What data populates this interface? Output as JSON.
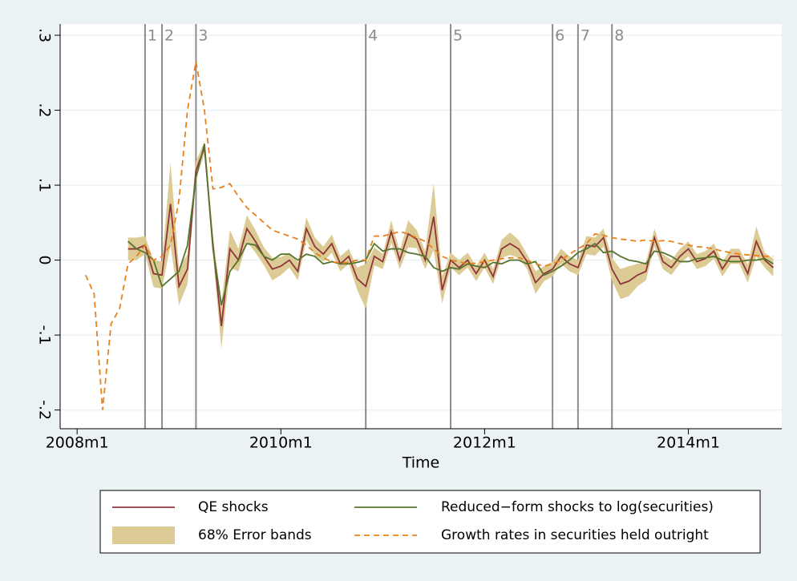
{
  "chart_data": {
    "type": "line",
    "x_label": "Time",
    "x": [
      "2008m2",
      "2008m3",
      "2008m4",
      "2008m5",
      "2008m6",
      "2008m7",
      "2008m8",
      "2008m9",
      "2008m10",
      "2008m11",
      "2008m12",
      "2009m1",
      "2009m2",
      "2009m3",
      "2009m4",
      "2009m5",
      "2009m6",
      "2009m7",
      "2009m8",
      "2009m9",
      "2009m10",
      "2009m11",
      "2009m12",
      "2010m1",
      "2010m2",
      "2010m3",
      "2010m4",
      "2010m5",
      "2010m6",
      "2010m7",
      "2010m8",
      "2010m9",
      "2010m10",
      "2010m11",
      "2010m12",
      "2011m1",
      "2011m2",
      "2011m3",
      "2011m4",
      "2011m5",
      "2011m6",
      "2011m7",
      "2011m8",
      "2011m9",
      "2011m10",
      "2011m11",
      "2011m12",
      "2012m1",
      "2012m2",
      "2012m3",
      "2012m4",
      "2012m5",
      "2012m6",
      "2012m7",
      "2012m8",
      "2012m9",
      "2012m10",
      "2012m11",
      "2012m12",
      "2013m1",
      "2013m2",
      "2013m3",
      "2013m4",
      "2013m5",
      "2013m6",
      "2013m7",
      "2013m8",
      "2013m9",
      "2013m10",
      "2013m11",
      "2013m12",
      "2014m1",
      "2014m2",
      "2014m3",
      "2014m4",
      "2014m5",
      "2014m6",
      "2014m7",
      "2014m8",
      "2014m9",
      "2014m10",
      "2014m11"
    ],
    "series": [
      {
        "name": "QE shocks",
        "type": "line",
        "color": "#90353b",
        "values": [
          null,
          null,
          null,
          null,
          null,
          0.015,
          0.015,
          0.02,
          -0.018,
          -0.02,
          0.075,
          -0.035,
          -0.012,
          0.12,
          0.15,
          0.02,
          -0.088,
          0.015,
          0.0,
          0.042,
          0.025,
          0.005,
          -0.012,
          -0.008,
          0.0,
          -0.015,
          0.042,
          0.018,
          0.008,
          0.022,
          -0.005,
          0.005,
          -0.025,
          -0.035,
          0.005,
          -0.002,
          0.038,
          0.0,
          0.035,
          0.028,
          0.0,
          0.058,
          -0.04,
          0.0,
          -0.01,
          0.0,
          -0.018,
          0.0,
          -0.022,
          0.015,
          0.022,
          0.015,
          -0.002,
          -0.03,
          -0.018,
          -0.012,
          0.005,
          -0.005,
          -0.01,
          0.02,
          0.018,
          0.03,
          -0.012,
          -0.032,
          -0.028,
          -0.02,
          -0.015,
          0.03,
          -0.002,
          -0.01,
          0.005,
          0.015,
          -0.002,
          0.002,
          0.012,
          -0.012,
          0.005,
          0.005,
          -0.018,
          0.025,
          0.0,
          -0.01
        ]
      },
      {
        "name": "Reduced−form shocks to log(securities)",
        "type": "line",
        "color": "#55752f",
        "values": [
          null,
          null,
          null,
          null,
          null,
          0.025,
          0.015,
          0.01,
          0.0,
          -0.035,
          -0.025,
          -0.015,
          0.02,
          0.11,
          0.155,
          0.015,
          -0.06,
          -0.015,
          0.0,
          0.022,
          0.02,
          0.005,
          0.0,
          0.008,
          0.008,
          0.0,
          0.008,
          0.005,
          -0.005,
          -0.002,
          -0.005,
          -0.005,
          -0.003,
          0.0,
          0.022,
          0.012,
          0.015,
          0.015,
          0.01,
          0.008,
          0.005,
          -0.01,
          -0.015,
          -0.01,
          -0.012,
          -0.005,
          -0.008,
          -0.01,
          -0.003,
          -0.005,
          0.0,
          0.0,
          -0.005,
          -0.002,
          -0.02,
          -0.015,
          -0.008,
          0.0,
          0.01,
          0.015,
          0.022,
          0.01,
          0.012,
          0.005,
          0.0,
          -0.002,
          -0.005,
          0.012,
          0.01,
          0.005,
          -0.002,
          -0.002,
          0.002,
          0.003,
          0.005,
          0.0,
          -0.002,
          -0.002,
          0.0,
          0.0,
          0.002,
          -0.005
        ]
      },
      {
        "name": "68% Error bands",
        "type": "band",
        "color": "#dccb95",
        "lower": [
          null,
          null,
          null,
          null,
          null,
          0.0,
          0.0,
          0.008,
          -0.036,
          -0.038,
          0.02,
          -0.06,
          -0.032,
          0.108,
          0.142,
          0.008,
          -0.118,
          -0.01,
          -0.015,
          0.024,
          0.01,
          -0.007,
          -0.027,
          -0.02,
          -0.01,
          -0.027,
          0.027,
          0.006,
          -0.002,
          0.01,
          -0.015,
          -0.005,
          -0.04,
          -0.065,
          -0.007,
          -0.012,
          0.023,
          -0.012,
          0.017,
          0.016,
          -0.012,
          0.013,
          -0.058,
          -0.01,
          -0.02,
          -0.01,
          -0.028,
          -0.01,
          -0.032,
          0.003,
          0.007,
          0.003,
          -0.012,
          -0.045,
          -0.028,
          -0.022,
          -0.005,
          -0.015,
          -0.02,
          0.008,
          0.006,
          0.018,
          -0.027,
          -0.052,
          -0.048,
          -0.035,
          -0.027,
          0.018,
          -0.012,
          -0.02,
          -0.005,
          0.005,
          -0.012,
          -0.008,
          0.002,
          -0.022,
          -0.005,
          -0.005,
          -0.03,
          0.005,
          -0.01,
          -0.022
        ],
        "upper": [
          null,
          null,
          null,
          null,
          null,
          0.03,
          0.03,
          0.032,
          0.0,
          -0.002,
          0.13,
          -0.01,
          0.008,
          0.132,
          0.158,
          0.032,
          -0.058,
          0.04,
          0.015,
          0.06,
          0.04,
          0.017,
          0.003,
          0.004,
          0.01,
          -0.003,
          0.057,
          0.03,
          0.018,
          0.034,
          0.005,
          0.015,
          -0.01,
          -0.005,
          0.017,
          0.008,
          0.053,
          0.012,
          0.053,
          0.04,
          0.012,
          0.103,
          -0.022,
          0.01,
          0.0,
          0.01,
          -0.008,
          0.01,
          -0.012,
          0.027,
          0.037,
          0.027,
          0.008,
          -0.015,
          -0.008,
          -0.002,
          0.015,
          0.005,
          0.0,
          0.032,
          0.03,
          0.042,
          0.003,
          -0.012,
          -0.008,
          -0.005,
          -0.003,
          0.042,
          0.008,
          0.0,
          0.015,
          0.025,
          0.008,
          0.012,
          0.022,
          -0.002,
          0.015,
          0.015,
          -0.006,
          0.045,
          0.01,
          0.002
        ]
      },
      {
        "name": "Growth rates in securities held outright",
        "type": "dashed",
        "color": "#e8811c",
        "values": [
          -0.02,
          -0.045,
          -0.2,
          -0.085,
          -0.065,
          -0.005,
          0.005,
          0.02,
          0.0,
          0.005,
          0.02,
          0.08,
          0.2,
          0.265,
          0.2,
          0.095,
          0.097,
          0.102,
          0.085,
          0.07,
          0.06,
          0.05,
          0.04,
          0.036,
          0.032,
          0.028,
          0.02,
          0.01,
          0.003,
          -0.002,
          -0.004,
          -0.003,
          0.0,
          0.0,
          0.032,
          0.032,
          0.035,
          0.038,
          0.035,
          0.03,
          0.025,
          0.015,
          0.005,
          0.0,
          -0.002,
          -0.005,
          -0.004,
          -0.002,
          0.0,
          0.002,
          0.003,
          0.003,
          0.0,
          -0.005,
          -0.008,
          -0.005,
          0.0,
          0.008,
          0.015,
          0.022,
          0.035,
          0.033,
          0.03,
          0.028,
          0.027,
          0.025,
          0.027,
          0.025,
          0.026,
          0.025,
          0.022,
          0.02,
          0.018,
          0.017,
          0.015,
          0.012,
          0.01,
          0.008,
          0.007,
          0.006,
          0.005,
          0.005
        ]
      }
    ],
    "events": [
      {
        "label": "1",
        "x": "2008m9"
      },
      {
        "label": "2",
        "x": "2008m11"
      },
      {
        "label": "3",
        "x": "2009m3"
      },
      {
        "label": "4",
        "x": "2010m11"
      },
      {
        "label": "5",
        "x": "2011m9"
      },
      {
        "label": "6",
        "x": "2012m9"
      },
      {
        "label": "7",
        "x": "2012m12"
      },
      {
        "label": "8",
        "x": "2013m4"
      }
    ],
    "xlim": [
      "2007m11",
      "2014m12"
    ],
    "xticks": [
      "2008m1",
      "2010m1",
      "2012m1",
      "2014m1"
    ],
    "ylim": [
      -0.225,
      0.315
    ],
    "yticks": [
      {
        "value": -0.2,
        "label": "-.2"
      },
      {
        "value": -0.1,
        "label": "-.1"
      },
      0,
      {
        "value": 0.1,
        "label": ".1"
      },
      {
        "value": 0.2,
        "label": ".2"
      },
      {
        "value": 0.3,
        "label": ".3"
      }
    ],
    "grid": true
  }
}
